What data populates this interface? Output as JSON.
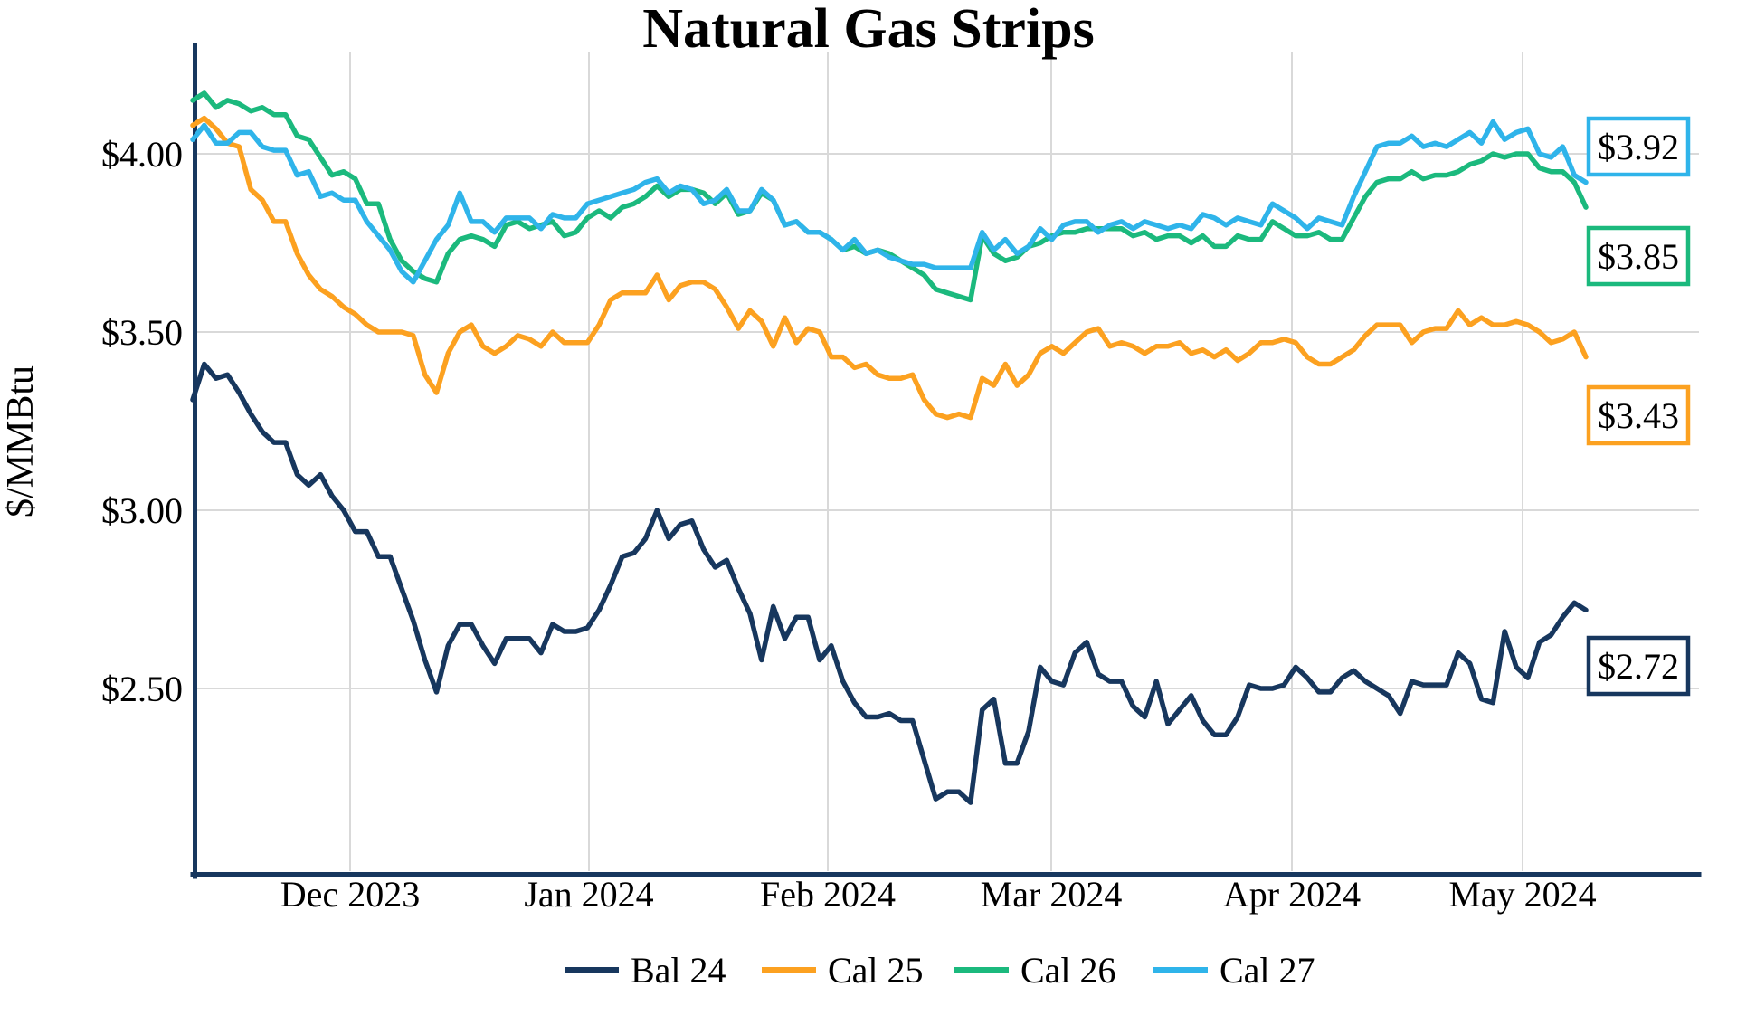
{
  "title": "Natural Gas Strips",
  "y_axis": {
    "label": "$/MMBtu",
    "ticks": [
      {
        "label": "$4.00",
        "value": 4.0
      },
      {
        "label": "$3.50",
        "value": 3.5
      },
      {
        "label": "$3.00",
        "value": 3.0
      },
      {
        "label": "$2.50",
        "value": 2.5
      }
    ]
  },
  "x_axis": {
    "ticks": [
      "Dec 2023",
      "Jan 2024",
      "Feb 2024",
      "Mar 2024",
      "Apr 2024",
      "May 2024"
    ]
  },
  "legend": [
    {
      "label": "Bal 24",
      "color": "#17375E"
    },
    {
      "label": "Cal 25",
      "color": "#FCA120"
    },
    {
      "label": "Cal 26",
      "color": "#1BB97D"
    },
    {
      "label": "Cal 27",
      "color": "#2FB4EA"
    }
  ],
  "end_labels": [
    {
      "text": "$3.92",
      "series": "Cal 27",
      "color": "#2FB4EA"
    },
    {
      "text": "$3.85",
      "series": "Cal 26",
      "color": "#1BB97D"
    },
    {
      "text": "$3.43",
      "series": "Cal 25",
      "color": "#FCA120"
    },
    {
      "text": "$2.72",
      "series": "Bal 24",
      "color": "#17375E"
    }
  ],
  "chart_data": {
    "type": "line",
    "title": "Natural Gas Strips",
    "ylabel": "$/MMBtu",
    "ylim": [
      2.0,
      4.28
    ],
    "yticks": [
      2.5,
      3.0,
      3.5,
      4.0
    ],
    "x_range": "mid-Nov 2023 to mid-May 2024, ~1.5-day steps (121 points per series)",
    "month_ticks": [
      "Dec 2023",
      "Jan 2024",
      "Feb 2024",
      "Mar 2024",
      "Apr 2024",
      "May 2024"
    ],
    "grid": true,
    "legend_position": "bottom",
    "end_values": {
      "Bal 24": 2.72,
      "Cal 25": 3.43,
      "Cal 26": 3.85,
      "Cal 27": 3.92
    },
    "series": [
      {
        "name": "Bal 24",
        "color": "#17375E",
        "values": [
          3.31,
          3.41,
          3.37,
          3.38,
          3.33,
          3.27,
          3.22,
          3.19,
          3.19,
          3.1,
          3.07,
          3.1,
          3.04,
          3.0,
          2.94,
          2.94,
          2.87,
          2.87,
          2.78,
          2.69,
          2.58,
          2.49,
          2.62,
          2.68,
          2.68,
          2.62,
          2.57,
          2.64,
          2.64,
          2.64,
          2.6,
          2.68,
          2.66,
          2.66,
          2.67,
          2.72,
          2.79,
          2.87,
          2.88,
          2.92,
          3.0,
          2.92,
          2.96,
          2.97,
          2.89,
          2.84,
          2.86,
          2.78,
          2.71,
          2.58,
          2.73,
          2.64,
          2.7,
          2.7,
          2.58,
          2.62,
          2.52,
          2.46,
          2.42,
          2.42,
          2.43,
          2.41,
          2.41,
          2.3,
          2.19,
          2.21,
          2.21,
          2.18,
          2.44,
          2.47,
          2.29,
          2.29,
          2.38,
          2.56,
          2.52,
          2.51,
          2.6,
          2.63,
          2.54,
          2.52,
          2.52,
          2.45,
          2.42,
          2.52,
          2.4,
          2.44,
          2.48,
          2.41,
          2.37,
          2.37,
          2.42,
          2.51,
          2.5,
          2.5,
          2.51,
          2.56,
          2.53,
          2.49,
          2.49,
          2.53,
          2.55,
          2.52,
          2.5,
          2.48,
          2.43,
          2.52,
          2.51,
          2.51,
          2.51,
          2.6,
          2.57,
          2.47,
          2.46,
          2.66,
          2.56,
          2.53,
          2.63,
          2.65,
          2.7,
          2.74,
          2.72
        ]
      },
      {
        "name": "Cal 25",
        "color": "#FCA120",
        "values": [
          4.08,
          4.1,
          4.07,
          4.03,
          4.02,
          3.9,
          3.87,
          3.81,
          3.81,
          3.72,
          3.66,
          3.62,
          3.6,
          3.57,
          3.55,
          3.52,
          3.5,
          3.5,
          3.5,
          3.49,
          3.38,
          3.33,
          3.44,
          3.5,
          3.52,
          3.46,
          3.44,
          3.46,
          3.49,
          3.48,
          3.46,
          3.5,
          3.47,
          3.47,
          3.47,
          3.52,
          3.59,
          3.61,
          3.61,
          3.61,
          3.66,
          3.59,
          3.63,
          3.64,
          3.64,
          3.62,
          3.57,
          3.51,
          3.56,
          3.53,
          3.46,
          3.54,
          3.47,
          3.51,
          3.5,
          3.43,
          3.43,
          3.4,
          3.41,
          3.38,
          3.37,
          3.37,
          3.38,
          3.31,
          3.27,
          3.26,
          3.27,
          3.26,
          3.37,
          3.35,
          3.41,
          3.35,
          3.38,
          3.44,
          3.46,
          3.44,
          3.47,
          3.5,
          3.51,
          3.46,
          3.47,
          3.46,
          3.44,
          3.46,
          3.46,
          3.47,
          3.44,
          3.45,
          3.43,
          3.45,
          3.42,
          3.44,
          3.47,
          3.47,
          3.48,
          3.47,
          3.43,
          3.41,
          3.41,
          3.43,
          3.45,
          3.49,
          3.52,
          3.52,
          3.52,
          3.47,
          3.5,
          3.51,
          3.51,
          3.56,
          3.52,
          3.54,
          3.52,
          3.52,
          3.53,
          3.52,
          3.5,
          3.47,
          3.48,
          3.5,
          3.43
        ]
      },
      {
        "name": "Cal 26",
        "color": "#1BB97D",
        "values": [
          4.15,
          4.17,
          4.13,
          4.15,
          4.14,
          4.12,
          4.13,
          4.11,
          4.11,
          4.05,
          4.04,
          3.99,
          3.94,
          3.95,
          3.93,
          3.86,
          3.86,
          3.76,
          3.7,
          3.67,
          3.65,
          3.64,
          3.72,
          3.76,
          3.77,
          3.76,
          3.74,
          3.8,
          3.81,
          3.79,
          3.8,
          3.81,
          3.77,
          3.78,
          3.82,
          3.84,
          3.82,
          3.85,
          3.86,
          3.88,
          3.91,
          3.88,
          3.9,
          3.9,
          3.89,
          3.86,
          3.89,
          3.83,
          3.84,
          3.89,
          3.87,
          3.8,
          3.81,
          3.78,
          3.78,
          3.76,
          3.73,
          3.74,
          3.72,
          3.73,
          3.72,
          3.7,
          3.68,
          3.66,
          3.62,
          3.61,
          3.6,
          3.59,
          3.77,
          3.72,
          3.7,
          3.71,
          3.74,
          3.75,
          3.77,
          3.78,
          3.78,
          3.79,
          3.79,
          3.79,
          3.79,
          3.77,
          3.78,
          3.76,
          3.77,
          3.77,
          3.75,
          3.77,
          3.74,
          3.74,
          3.77,
          3.76,
          3.76,
          3.81,
          3.79,
          3.77,
          3.77,
          3.78,
          3.76,
          3.76,
          3.82,
          3.88,
          3.92,
          3.93,
          3.93,
          3.95,
          3.93,
          3.94,
          3.94,
          3.95,
          3.97,
          3.98,
          4.0,
          3.99,
          4.0,
          4.0,
          3.96,
          3.95,
          3.95,
          3.92,
          3.85
        ]
      },
      {
        "name": "Cal 27",
        "color": "#2FB4EA",
        "values": [
          4.04,
          4.08,
          4.03,
          4.03,
          4.06,
          4.06,
          4.02,
          4.01,
          4.01,
          3.94,
          3.95,
          3.88,
          3.89,
          3.87,
          3.87,
          3.81,
          3.77,
          3.73,
          3.67,
          3.64,
          3.7,
          3.76,
          3.8,
          3.89,
          3.81,
          3.81,
          3.78,
          3.82,
          3.82,
          3.82,
          3.79,
          3.83,
          3.82,
          3.82,
          3.86,
          3.87,
          3.88,
          3.89,
          3.9,
          3.92,
          3.93,
          3.89,
          3.91,
          3.9,
          3.86,
          3.87,
          3.9,
          3.84,
          3.84,
          3.9,
          3.87,
          3.8,
          3.81,
          3.78,
          3.78,
          3.76,
          3.73,
          3.76,
          3.72,
          3.73,
          3.71,
          3.7,
          3.69,
          3.69,
          3.68,
          3.68,
          3.68,
          3.68,
          3.78,
          3.73,
          3.76,
          3.72,
          3.74,
          3.79,
          3.76,
          3.8,
          3.81,
          3.81,
          3.78,
          3.8,
          3.81,
          3.79,
          3.81,
          3.8,
          3.79,
          3.8,
          3.79,
          3.83,
          3.82,
          3.8,
          3.82,
          3.81,
          3.8,
          3.86,
          3.84,
          3.82,
          3.79,
          3.82,
          3.81,
          3.8,
          3.88,
          3.95,
          4.02,
          4.03,
          4.03,
          4.05,
          4.02,
          4.03,
          4.02,
          4.04,
          4.06,
          4.03,
          4.09,
          4.04,
          4.06,
          4.07,
          4.0,
          3.99,
          4.02,
          3.94,
          3.92
        ]
      }
    ]
  }
}
